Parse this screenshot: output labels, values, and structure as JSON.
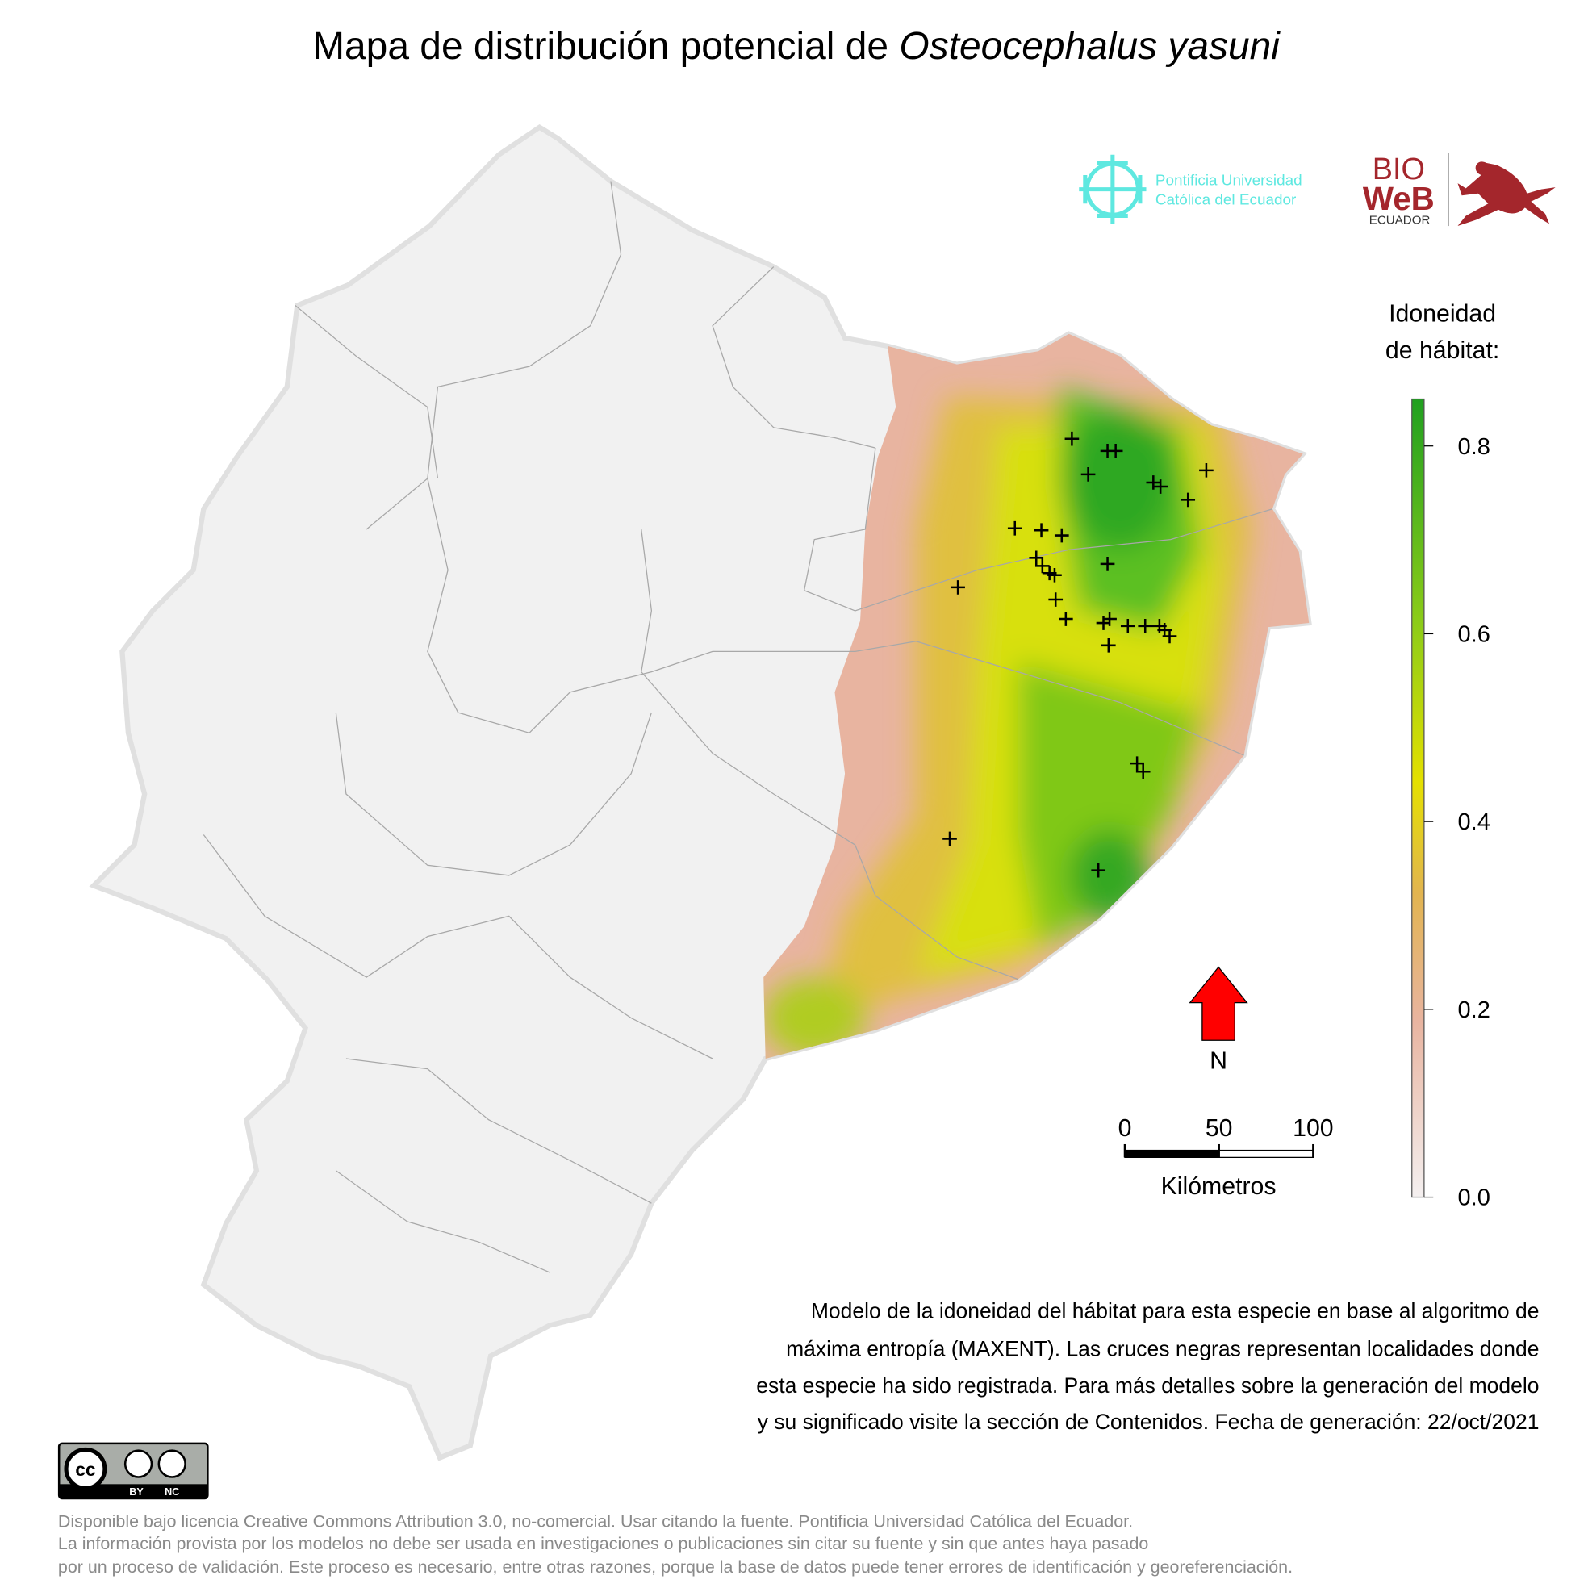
{
  "title": {
    "text": "Mapa de distribución potencial de ",
    "species": "Osteocephalus yasuni"
  },
  "logos": {
    "puce": [
      "Pontificia Universidad",
      "Católica del Ecuador"
    ],
    "bioweb": [
      "BIO",
      "WeB",
      "ECUADOR"
    ]
  },
  "legend": {
    "title_lines": [
      "Idoneidad",
      "de hábitat:"
    ],
    "lim": [
      0,
      0.85
    ],
    "ticks": [
      {
        "value": 0,
        "label": "0.0"
      },
      0.2,
      0.4,
      0.6,
      0.8
    ]
  },
  "north": "N",
  "scale_bar": {
    "lim": [
      0,
      100
    ],
    "ticks": [
      0,
      50,
      100
    ],
    "unit": "Kilómetros"
  },
  "description": [
    "Modelo de la idoneidad del hábitat para esta especie en base al algoritmo de",
    "máxima entropía (MAXENT). Las cruces negras representan localidades donde",
    "esta especie ha sido registrada. Para más detalles sobre la generación del modelo",
    "y su significado visite la sección de Contenidos. Fecha de generación: 22/oct/2021"
  ],
  "license": {
    "badge": [
      "BY",
      "NC"
    ],
    "lines": [
      "Disponible bajo licencia Creative Commons Attribution 3.0, no-comercial. Usar citando la fuente. Pontificia Universidad Católica del Ecuador.",
      "La información provista por los modelos no debe ser usada en investigaciones o publicaciones sin citar su fuente y sin que antes haya pasado",
      "por un proceso de validación. Este proceso es necesario, entre otras razones, porque la base de datos puede tener errores de identificación y georeferenciación."
    ]
  }
}
